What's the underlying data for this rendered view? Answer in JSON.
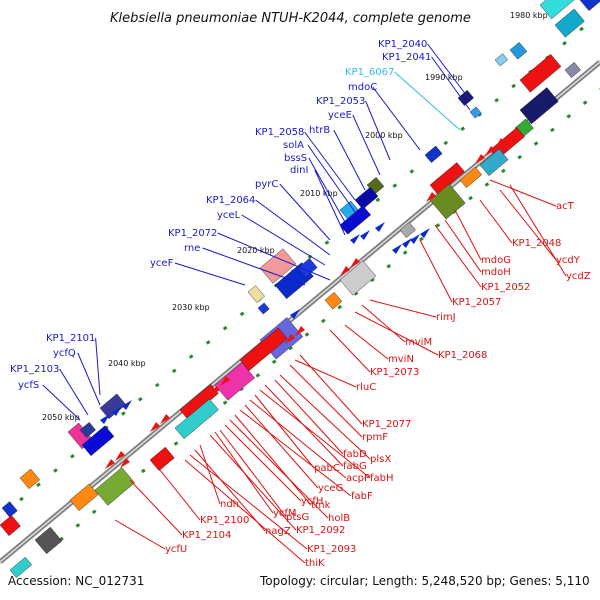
{
  "title": "Klebsiella pneumoniae NTUH-K2044, complete genome",
  "footer": {
    "accession": "Accession: NC_012731",
    "summary": "Topology: circular; Length: 5,248,520 bp; Genes: 5,110"
  },
  "colors": {
    "backbone": "#8a8a8a",
    "plus_strand_label": "#1a1acc",
    "minus_strand_label": "#dd1111",
    "highlight_label": "#33bbee",
    "tick_green": "#2a8a2a"
  },
  "ticks": [
    "1980 kbp",
    "1990 kbp",
    "2000 kbp",
    "2010 kbp",
    "2020 kbp",
    "2030 kbp",
    "2040 kbp",
    "2050 kbp"
  ],
  "upper_labels": [
    "KP1_2040",
    "KP1_2041",
    "KP1_6067",
    "mdoC",
    "KP1_2053",
    "yceE",
    "htrB",
    "KP1_2058",
    "solA",
    "bssS",
    "dinI",
    "pyrC",
    "KP1_2064",
    "yceL",
    "KP1_2072",
    "rne",
    "yceF",
    "KP1_2101",
    "ycfQ",
    "KP1_2103",
    "ycfS"
  ],
  "lower_labels": [
    "acT",
    "KP1_2048",
    "ycdY",
    "ycdZ",
    "mdoG",
    "mdoH",
    "KP1_2052",
    "KP1_2057",
    "rimJ",
    "mviM",
    "KP1_2068",
    "mviN",
    "KP1_2073",
    "rluC",
    "KP1_2077",
    "rpmF",
    "plsX",
    "fabD",
    "fabG",
    "fabH",
    "pabC",
    "acpP",
    "yceG",
    "fabF",
    "tmk",
    "holB",
    "ycfH",
    "ptsG",
    "ycfM",
    "KP1_2092",
    "ndh",
    "nagZ",
    "KP1_2093",
    "thiK",
    "KP1_2100",
    "KP1_2104",
    "ycfU"
  ]
}
